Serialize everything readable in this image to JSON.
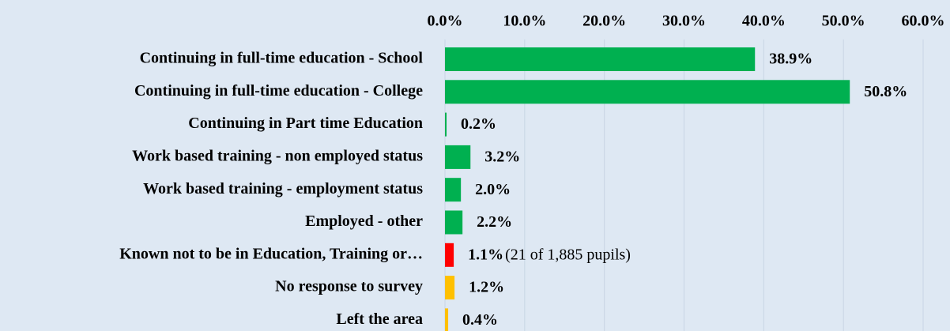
{
  "chart_data": {
    "type": "hbar",
    "categories": [
      "Continuing in full-time education - School",
      "Continuing in full-time education - College",
      "Continuing in Part time Education",
      "Work based training - non employed status",
      "Work based training - employment status",
      "Employed - other",
      "Known not to be in Education, Training or…",
      "No response to survey",
      "Left the area"
    ],
    "values": [
      38.9,
      50.8,
      0.2,
      3.2,
      2.0,
      2.2,
      1.1,
      1.2,
      0.4
    ],
    "value_labels": [
      "38.9%",
      "50.8%",
      "0.2%",
      "3.2%",
      "2.0%",
      "2.2%",
      "1.1%",
      "1.2%",
      "0.4%"
    ],
    "colors": [
      "#00b050",
      "#00b050",
      "#00b050",
      "#00b050",
      "#00b050",
      "#00b050",
      "#ff0000",
      "#ffc000",
      "#ffc000"
    ],
    "xlim": [
      0,
      60
    ],
    "xticks": [
      {
        "value": 0,
        "label": "0.0%"
      },
      {
        "value": 10,
        "label": "10.0%"
      },
      {
        "value": 20,
        "label": "20.0%"
      },
      {
        "value": 30,
        "label": "30.0%"
      },
      {
        "value": 40,
        "label": "40.0%"
      },
      {
        "value": 50,
        "label": "50.0%"
      },
      {
        "value": 60,
        "label": "60.0%"
      }
    ],
    "grid": true,
    "annotations": [
      {
        "text": "(21 of 1,885 pupils)",
        "category_index": 6
      }
    ]
  }
}
